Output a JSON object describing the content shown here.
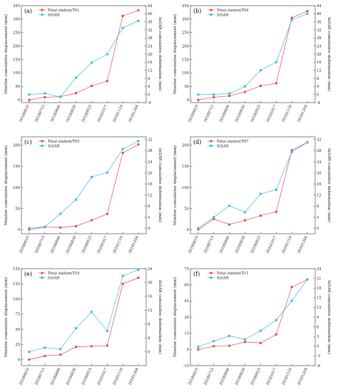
{
  "chart_data": [
    {
      "type": "line",
      "panel_label": "(a)",
      "categories": [
        "20180619",
        "20180713",
        "20180806",
        "20180830",
        "20180923",
        "20181017",
        "20181110",
        "20181204"
      ],
      "left_axis": {
        "label": "Monitor cumulative displacement (mm)",
        "range": [
          -10,
          350
        ],
        "ticks": [
          0,
          50,
          100,
          150,
          200,
          250,
          300,
          350
        ]
      },
      "right_axis": {
        "label": "InSAR cumulative deformation (mm)",
        "range": [
          -4,
          44
        ],
        "ticks": [
          -4,
          0,
          4,
          8,
          12,
          16,
          20,
          24,
          28,
          32,
          36,
          40,
          44
        ]
      },
      "series": [
        {
          "name": "Total station/T01",
          "axis": "left",
          "color": "#e8474d",
          "marker": "square",
          "values": [
            0,
            10,
            12,
            25,
            52,
            70,
            312,
            333
          ]
        },
        {
          "name": "InSAR",
          "axis": "right",
          "color": "#35b8e6",
          "marker": "square",
          "values": [
            0,
            0.6,
            -1.2,
            8.3,
            15.8,
            20,
            33,
            36.5
          ]
        }
      ],
      "legend_position": "top-left"
    },
    {
      "type": "line",
      "panel_label": "(b)",
      "categories": [
        "20180619",
        "20180713",
        "20180806",
        "20180830",
        "20180923",
        "20181017",
        "20181110",
        "20181204"
      ],
      "left_axis": {
        "label": "Monitor cumulative displacement (mm)",
        "range": [
          -10,
          350
        ],
        "ticks": [
          0,
          50,
          100,
          150,
          200,
          250,
          300,
          350
        ]
      },
      "right_axis": {
        "label": "InSAR cumulative deformation (mm)",
        "range": [
          -4,
          44
        ],
        "ticks": [
          -4,
          0,
          4,
          8,
          12,
          16,
          20,
          24,
          28,
          32,
          36,
          40,
          44
        ]
      },
      "series": [
        {
          "name": "Total station/T04",
          "axis": "left",
          "color": "#e8474d",
          "marker": "square",
          "values": [
            0,
            10,
            15,
            30,
            52,
            62,
            305,
            330
          ]
        },
        {
          "name": "InSAR",
          "axis": "right",
          "color": "#35b8e6",
          "marker": "square",
          "values": [
            0,
            0,
            0.5,
            4,
            12,
            16,
            37,
            40
          ]
        }
      ],
      "legend_position": "top-left"
    },
    {
      "type": "line",
      "panel_label": "(c)",
      "categories": [
        "20180619",
        "20180713",
        "20180806",
        "20180830",
        "20180923",
        "20181017",
        "20181110",
        "20181204"
      ],
      "left_axis": {
        "label": "Monitor cumulative displacement (mm)",
        "range": [
          -10,
          220
        ],
        "ticks": [
          0,
          50,
          100,
          150,
          200
        ]
      },
      "right_axis": {
        "label": "InSAR cumulative deformation (mm)",
        "range": [
          -2,
          33
        ],
        "ticks": [
          0,
          4,
          8,
          12,
          16,
          20,
          24,
          28,
          32
        ]
      },
      "series": [
        {
          "name": "Total station/T05",
          "axis": "left",
          "color": "#e8474d",
          "marker": "square",
          "values": [
            0,
            6,
            5,
            8,
            22,
            37,
            182,
            202
          ]
        },
        {
          "name": "InSAR",
          "axis": "right",
          "color": "#35b8e6",
          "marker": "square",
          "values": [
            0,
            0.5,
            5.2,
            10.3,
            18.5,
            20.1,
            28.6,
            31.5
          ]
        }
      ],
      "legend_position": "top-left"
    },
    {
      "type": "line",
      "panel_label": "(d)",
      "categories": [
        "20180619",
        "20180713",
        "20180806",
        "20180830",
        "20180923",
        "20181017",
        "20181110",
        "20181204"
      ],
      "left_axis": {
        "label": "Monitor cumulative displacement (mm)",
        "range": [
          -10,
          220
        ],
        "ticks": [
          0,
          50,
          100,
          150,
          200
        ]
      },
      "right_axis": {
        "label": "InSAR cumulative deformation (mm)",
        "range": [
          -2,
          33
        ],
        "ticks": [
          0,
          4,
          8,
          12,
          16,
          20,
          24,
          28,
          32
        ]
      },
      "series": [
        {
          "name": "Total station/T07",
          "axis": "left",
          "color": "#e8474d",
          "marker": "square",
          "values": [
            0,
            25,
            12,
            22,
            33,
            42,
            188,
            207
          ]
        },
        {
          "name": "InSAR",
          "axis": "right",
          "color": "#35b8e6",
          "marker": "square",
          "values": [
            0,
            4,
            8.1,
            5.8,
            12.4,
            13.9,
            27.5,
            31
          ]
        }
      ],
      "legend_position": "top-left"
    },
    {
      "type": "line",
      "panel_label": "(e)",
      "categories": [
        "20180619",
        "20180713",
        "20180806",
        "20180830",
        "20180923",
        "20181017",
        "20181110",
        "20181204"
      ],
      "left_axis": {
        "label": "Monitor cumulative displacement (mm)",
        "range": [
          -10,
          150
        ],
        "ticks": [
          0,
          25,
          50,
          75,
          100,
          125,
          150
        ]
      },
      "right_axis": {
        "label": "InSAR cumulative deformation (mm)",
        "range": [
          -4,
          24
        ],
        "ticks": [
          0,
          4,
          8,
          12,
          16,
          20,
          24
        ]
      },
      "series": [
        {
          "name": "Total station/T10",
          "axis": "left",
          "color": "#e8474d",
          "marker": "square",
          "values": [
            0,
            6,
            8,
            21,
            22,
            23,
            125,
            135
          ]
        },
        {
          "name": "InSAR",
          "axis": "right",
          "color": "#35b8e6",
          "marker": "square",
          "values": [
            0,
            1.2,
            0.8,
            6.8,
            11.5,
            6,
            21.9,
            23.7
          ]
        }
      ],
      "legend_position": "top-left"
    },
    {
      "type": "line",
      "panel_label": "(f)",
      "categories": [
        "20180619",
        "20180713",
        "20180806",
        "20180830",
        "20180923",
        "20181017",
        "20181110",
        "20181204"
      ],
      "left_axis": {
        "label": "Monitor cumulative displacement (mm)",
        "range": [
          -15,
          75
        ],
        "ticks": [
          -15,
          0,
          15,
          30,
          45,
          60,
          75
        ]
      },
      "right_axis": {
        "label": "InSAR cumulative deformation (mm)",
        "range": [
          -6,
          24
        ],
        "ticks": [
          -6,
          -3,
          0,
          3,
          6,
          9,
          12,
          15,
          18,
          21,
          24
        ]
      },
      "series": [
        {
          "name": "Total station/T11",
          "axis": "left",
          "color": "#e8474d",
          "marker": "square",
          "values": [
            0,
            3,
            3.5,
            7,
            6,
            14,
            58,
            65
          ]
        },
        {
          "name": "InSAR",
          "axis": "right",
          "color": "#35b8e6",
          "marker": "square",
          "values": [
            -0.2,
            1.6,
            3.2,
            2.1,
            4.8,
            8.1,
            14.1,
            20.7
          ]
        }
      ],
      "legend_position": "top-left"
    }
  ]
}
